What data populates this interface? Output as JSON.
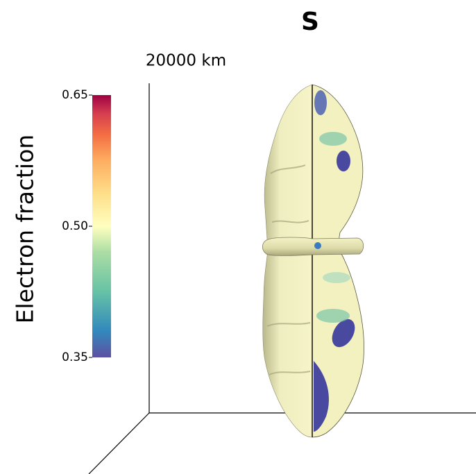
{
  "title": "S",
  "scale_label": "20000 km",
  "colorbar": {
    "label": "Electron fraction",
    "ticks": [
      "0.65",
      "0.50",
      "0.35"
    ]
  }
}
